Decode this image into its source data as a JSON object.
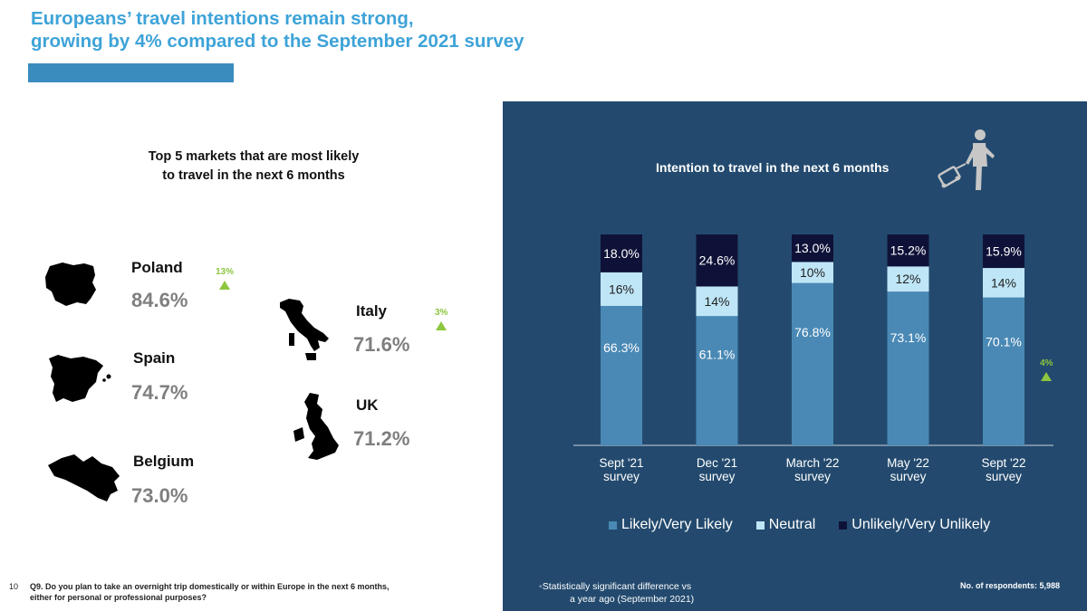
{
  "page": {
    "title_line1": "Europeans’ travel intentions remain strong,",
    "title_line2": "growing by 4% compared to the September 2021 survey",
    "page_number": "10"
  },
  "markets": {
    "heading_line1": "Top 5 markets that are most likely",
    "heading_line2": "to travel in the next 6 months",
    "items": [
      {
        "name": "Poland",
        "value": "84.6%",
        "change": "13%",
        "trend": "up"
      },
      {
        "name": "Spain",
        "value": "74.7%",
        "change": "",
        "trend": ""
      },
      {
        "name": "Belgium",
        "value": "73.0%",
        "change": "",
        "trend": ""
      },
      {
        "name": "Italy",
        "value": "71.6%",
        "change": "3%",
        "trend": "up"
      },
      {
        "name": "UK",
        "value": "71.2%",
        "change": "",
        "trend": ""
      }
    ],
    "shape_icons": [
      "poland-map-icon",
      "spain-map-icon",
      "belgium-map-icon",
      "italy-map-icon",
      "uk-map-icon"
    ]
  },
  "footnote": "Q9. Do you plan to take an overnight trip domestically or within Europe in the next 6 months, either for personal or professional purposes?",
  "chart_data": {
    "type": "bar",
    "stacked": true,
    "title": "Intention to travel in the next 6 months",
    "categories": [
      [
        "Sept '21",
        "survey"
      ],
      [
        "Dec '21",
        "survey"
      ],
      [
        "March '22",
        "survey"
      ],
      [
        "May '22",
        "survey"
      ],
      [
        "Sept  '22",
        "survey"
      ]
    ],
    "series": [
      {
        "name": "Likely/Very Likely",
        "values": [
          66.3,
          61.1,
          76.8,
          73.1,
          70.1
        ],
        "labels": [
          "66.3%",
          "61.1%",
          "76.8%",
          "73.1%",
          "70.1%"
        ],
        "color": "#4a89b5"
      },
      {
        "name": "Neutral",
        "values": [
          16,
          14,
          10,
          12,
          14
        ],
        "labels": [
          "16%",
          "14%",
          "10%",
          "12%",
          "14%"
        ],
        "color": "#bfe6f7"
      },
      {
        "name": "Unlikely/Very Unlikely",
        "values": [
          18.0,
          24.6,
          13.0,
          15.2,
          15.9
        ],
        "labels": [
          "18.0%",
          "24.6%",
          "13.0%",
          "15.2%",
          "15.9%"
        ],
        "color": "#0f1238"
      }
    ],
    "change_label": "4%",
    "change_trend": "up"
  },
  "panel": {
    "icon": "traveler-with-suitcase-icon",
    "sig_note_line1": "◦Statistically significant difference vs",
    "sig_note_line2": "a year ago (September 2021)",
    "respondents": "No. of respondents: 5,988"
  },
  "colors": {
    "title": "#3ea3d8",
    "panel_bg": "#234a6e",
    "accent_green": "#8dc63f",
    "value_grey": "#7f7f7f"
  }
}
